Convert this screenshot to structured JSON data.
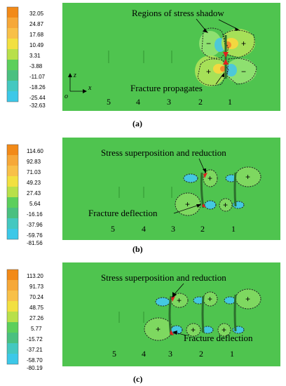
{
  "legend_colors": [
    "#f28a18",
    "#f6a838",
    "#f8c048",
    "#f2e040",
    "#b8e04a",
    "#5ccf5c",
    "#4ac080",
    "#44c8c0",
    "#3cc8e8"
  ],
  "field_color": "#4fc44f",
  "panels": [
    {
      "id": "a",
      "caption": "(a)",
      "legend": [
        "32.05",
        "24.87",
        "17.68",
        "10.49",
        "3.31",
        "-3.88",
        "-11.07",
        "-18.26",
        "-25.44",
        "-32.63"
      ],
      "annotations": [
        "Regions of stress shadow",
        "Fracture propagates"
      ],
      "stage_labels": [
        "5",
        "4",
        "3",
        "2",
        "1"
      ],
      "axis": {
        "z": "z",
        "x": "x",
        "origin": "o"
      }
    },
    {
      "id": "b",
      "caption": "(b)",
      "legend": [
        "114.60",
        "92.83",
        "71.03",
        "49.23",
        "27.43",
        "5.64",
        "-16.16",
        "-37.96",
        "-59.76",
        "-81.56"
      ],
      "annotations": [
        "Stress superposition and reduction",
        "Fracture deflection"
      ],
      "stage_labels": [
        "5",
        "4",
        "3",
        "2",
        "1"
      ]
    },
    {
      "id": "c",
      "caption": "(c)",
      "legend": [
        "113.20",
        "91.73",
        "70.24",
        "48.75",
        "27.26",
        "5.77",
        "-15.72",
        "-37.21",
        "-58.70",
        "-80.19"
      ],
      "annotations": [
        "Stress superposition and reduction",
        "Fracture deflection"
      ],
      "stage_labels": [
        "5",
        "4",
        "3",
        "2",
        "1"
      ]
    }
  ],
  "signs": {
    "plus": "+",
    "minus": "−"
  }
}
